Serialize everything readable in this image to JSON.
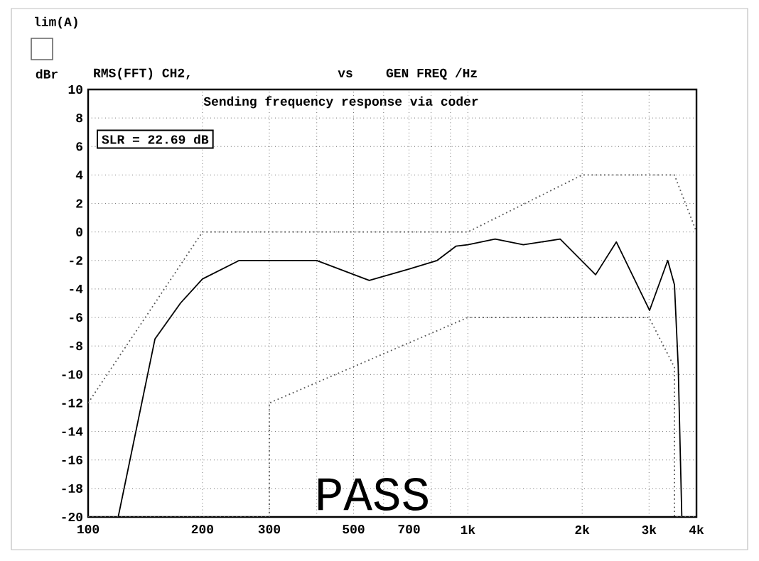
{
  "chart_data": {
    "type": "line",
    "title": "Sending frequency response via coder",
    "ylabel": "dBr",
    "annotations": [
      "lim(A)",
      "RMS(FFT) CH2,",
      "vs",
      "GEN FREQ /Hz",
      "SLR = 22.69 dB",
      "PASS"
    ],
    "log": "x",
    "grid": true,
    "xlim": [
      100,
      4000
    ],
    "ylim": [
      -20,
      10
    ],
    "xticks": [
      100,
      200,
      300,
      {
        "value": 400,
        "label": null
      },
      500,
      {
        "value": 600,
        "label": null
      },
      700,
      {
        "value": 800,
        "label": null
      },
      {
        "value": 900,
        "label": null
      },
      {
        "value": 1000,
        "label": "1k"
      },
      {
        "value": 2000,
        "label": "2k"
      },
      {
        "value": 3000,
        "label": "3k"
      },
      {
        "value": 4000,
        "label": "4k"
      }
    ],
    "yticks": [
      -20,
      -18,
      -16,
      -14,
      -12,
      -10,
      -8,
      -6,
      -4,
      -2,
      0,
      2,
      4,
      6,
      8,
      10
    ],
    "series": [
      {
        "color": "#000000",
        "line_style": "solid",
        "x": [
          100,
          120,
          150,
          175,
          200,
          250,
          400,
          550,
          700,
          830,
          930,
          1000,
          1180,
          1400,
          1750,
          2170,
          2460,
          3010,
          3360,
          3500,
          3580,
          3660,
          4000
        ],
        "values": [
          -20,
          -20,
          -7.5,
          -5.0,
          -3.3,
          -2,
          -2,
          -3.4,
          -2.6,
          -2,
          -1,
          -0.9,
          -0.5,
          -0.9,
          -0.5,
          -3,
          -0.7,
          -5.5,
          -2,
          -3.7,
          -9.4,
          -20,
          -20
        ]
      },
      {
        "color": "#555555",
        "line_style": "dotted",
        "x": [
          100,
          200,
          1000,
          2000,
          3500,
          4000
        ],
        "values": [
          -12,
          0,
          0,
          4,
          4,
          0
        ]
      },
      {
        "color": "#555555",
        "line_style": "dotted",
        "x": [
          100,
          300,
          300,
          1000,
          3000,
          3500,
          3500,
          4000
        ],
        "values": [
          -20,
          -20,
          -12,
          -6,
          -6,
          -9.5,
          -20,
          -20
        ]
      }
    ]
  }
}
